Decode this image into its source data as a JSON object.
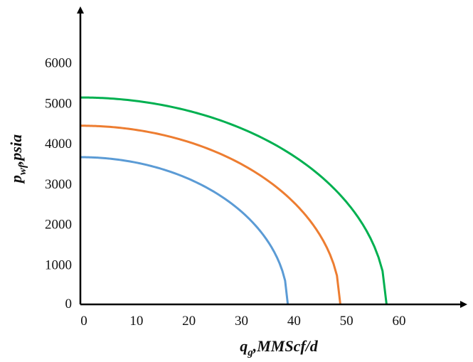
{
  "chart_data": {
    "type": "line",
    "title": "",
    "xlabel": {
      "base": "q",
      "sub": "g",
      "rest": ",MMScf/d"
    },
    "ylabel": {
      "base": "p",
      "sub": "wf",
      "rest": ",psia"
    },
    "xlim": [
      0,
      73
    ],
    "ylim": [
      0,
      7300
    ],
    "x_ticks": [
      0,
      10,
      20,
      30,
      40,
      50,
      60
    ],
    "y_ticks": [
      0,
      1000,
      2000,
      3000,
      4000,
      5000,
      6000
    ],
    "grid": false,
    "legend": "none",
    "series": [
      {
        "color": "#5b9bd5",
        "x_max": 39.5,
        "y_max": 3650
      },
      {
        "color": "#ed7d31",
        "x_max": 49.5,
        "y_max": 4430
      },
      {
        "color": "#00b050",
        "x_max": 58.3,
        "y_max": 5130
      }
    ],
    "curve_shape": "elliptical: p = p_max * sqrt(1 - (q/q_max)^2)"
  },
  "colors": {
    "axis": "#000000",
    "text": "#111111"
  }
}
